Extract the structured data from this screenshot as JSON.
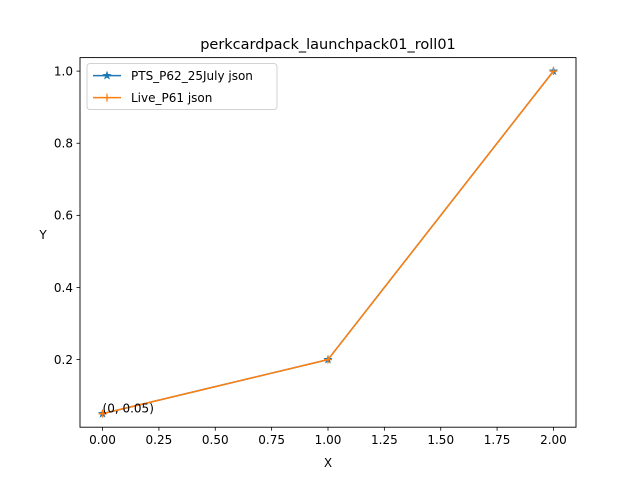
{
  "chart_data": {
    "type": "line",
    "title": "perkcardpack_launchpack01_roll01",
    "xlabel": "X",
    "ylabel": "Y",
    "xlim": [
      -0.1,
      2.1
    ],
    "ylim": [
      0.0125,
      1.0375
    ],
    "xticks": [
      0.0,
      0.25,
      0.5,
      0.75,
      1.0,
      1.25,
      1.5,
      1.75,
      2.0
    ],
    "xtick_labels": [
      "0.00",
      "0.25",
      "0.50",
      "0.75",
      "1.00",
      "1.25",
      "1.50",
      "1.75",
      "2.00"
    ],
    "yticks": [
      0.2,
      0.4,
      0.6,
      0.8,
      1.0
    ],
    "ytick_labels": [
      "0.2",
      "0.4",
      "0.6",
      "0.8",
      "1.0"
    ],
    "grid": false,
    "legend_position": "upper-left",
    "series": [
      {
        "name": "PTS_P62_25July json",
        "x": [
          0,
          1,
          2
        ],
        "y": [
          0.05,
          0.2,
          1.0
        ],
        "color": "#1f77b4",
        "marker": "star"
      },
      {
        "name": "Live_P61 json",
        "x": [
          0,
          1,
          2
        ],
        "y": [
          0.05,
          0.2,
          1.0
        ],
        "color": "#ff7f0e",
        "marker": "plus"
      }
    ],
    "annotations": [
      {
        "text": "(0, 0.05)",
        "x": 0,
        "y": 0.05
      }
    ]
  }
}
